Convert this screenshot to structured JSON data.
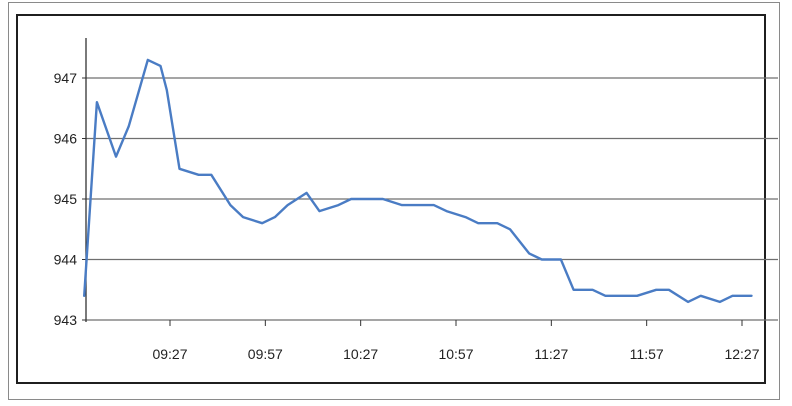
{
  "chart_data": {
    "type": "line",
    "title": "",
    "xlabel": "",
    "ylabel": "",
    "grid": true,
    "ylim": [
      943,
      947.5
    ],
    "yticks": [
      943,
      944,
      945,
      946,
      947
    ],
    "ytick_labels": [
      "943",
      "944",
      "945",
      "946",
      "947"
    ],
    "xticks": [
      "09:27",
      "09:57",
      "10:27",
      "10:57",
      "11:27",
      "11:57",
      "12:27"
    ],
    "line_color": "#4a7cc4",
    "series": [
      {
        "x": [
          "09:00",
          "09:04",
          "09:10",
          "09:14",
          "09:20",
          "09:24",
          "09:26",
          "09:30",
          "09:36",
          "09:40",
          "09:46",
          "09:50",
          "09:56",
          "10:00",
          "10:04",
          "10:10",
          "10:14",
          "10:20",
          "10:24",
          "10:28",
          "10:34",
          "10:40",
          "10:44",
          "10:50",
          "10:54",
          "11:00",
          "11:04",
          "11:10",
          "11:14",
          "11:20",
          "11:24",
          "11:30",
          "11:34",
          "11:40",
          "11:44",
          "11:50",
          "11:54",
          "12:00",
          "12:04",
          "12:10",
          "12:14",
          "12:20",
          "12:24",
          "12:30"
        ],
        "values": [
          943.4,
          946.6,
          945.7,
          946.2,
          947.3,
          947.2,
          946.8,
          945.5,
          945.4,
          945.4,
          944.9,
          944.7,
          944.6,
          944.7,
          944.9,
          945.1,
          944.8,
          944.9,
          945.0,
          945.0,
          945.0,
          944.9,
          944.9,
          944.9,
          944.8,
          944.7,
          944.6,
          944.6,
          944.5,
          944.1,
          944.0,
          944.0,
          943.5,
          943.5,
          943.4,
          943.4,
          943.4,
          943.5,
          943.5,
          943.3,
          943.4,
          943.3,
          943.4,
          943.4
        ]
      }
    ]
  }
}
